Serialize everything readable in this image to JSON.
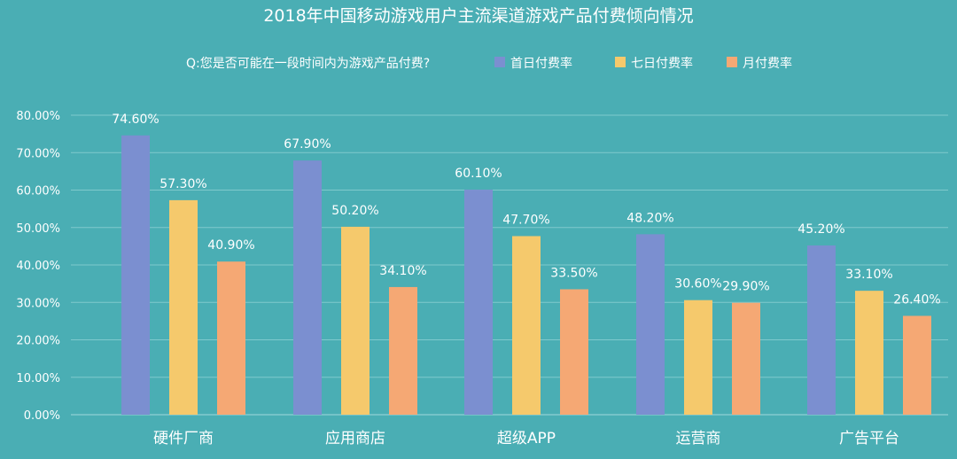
{
  "chart_data": {
    "type": "bar",
    "title": "2018年中国移动游戏用户主流渠道游戏产品付费倾向情况",
    "question": "Q:您是否可能在一段时间内为游戏产品付费?",
    "categories": [
      "硬件厂商",
      "应用商店",
      "超级APP",
      "运营商",
      "广告平台"
    ],
    "series": [
      {
        "name": "首日付费率",
        "color": "#7b8fd0",
        "values": [
          74.6,
          67.9,
          60.1,
          48.2,
          45.2
        ],
        "labels": [
          "74.60%",
          "67.90%",
          "60.10%",
          "48.20%",
          "45.20%"
        ]
      },
      {
        "name": "七日付费率",
        "color": "#f5c96c",
        "values": [
          57.3,
          50.2,
          47.7,
          30.6,
          33.1
        ],
        "labels": [
          "57.30%",
          "50.20%",
          "47.70%",
          "30.60%",
          "33.10%"
        ]
      },
      {
        "name": "月付费率",
        "color": "#f5a874",
        "values": [
          40.9,
          34.1,
          33.5,
          29.9,
          26.4
        ],
        "labels": [
          "40.90%",
          "34.10%",
          "33.50%",
          "29.90%",
          "26.40%"
        ]
      }
    ],
    "yticks": [
      "0.00%",
      "10.00%",
      "20.00%",
      "30.00%",
      "40.00%",
      "50.00%",
      "60.00%",
      "70.00%",
      "80.00%"
    ],
    "ylim": [
      0,
      80
    ],
    "grid": true,
    "legend_position": "top"
  }
}
